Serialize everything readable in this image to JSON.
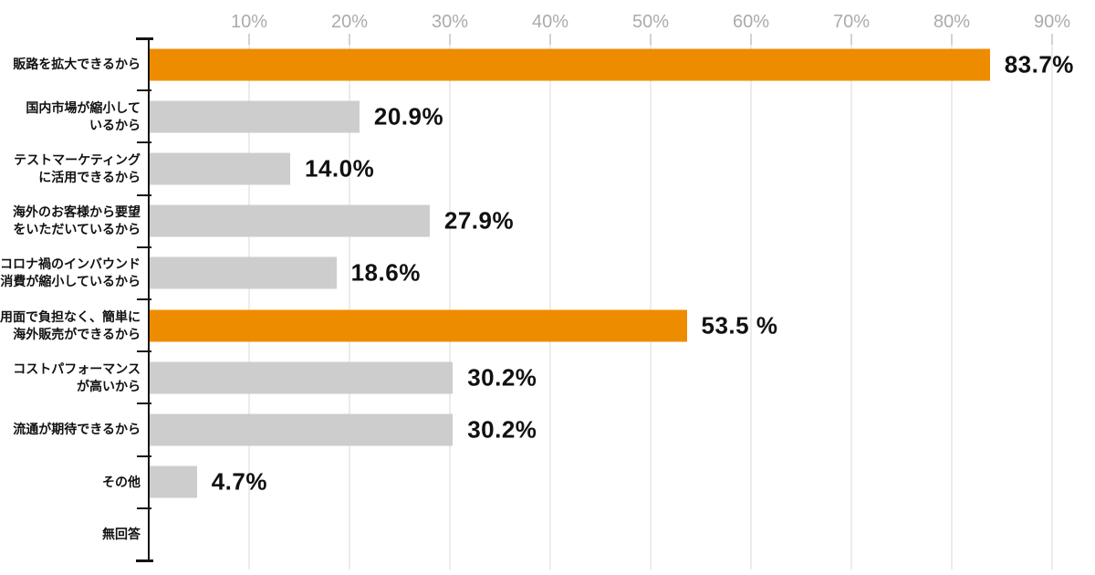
{
  "chart_data": {
    "type": "bar",
    "orientation": "horizontal",
    "title": "",
    "categories": [
      [
        "販路を拡大できるから"
      ],
      [
        "国内市場が縮小して",
        "いるから"
      ],
      [
        "テストマーケティング",
        "に活用できるから"
      ],
      [
        "海外のお客様から要望",
        "をいただいているから"
      ],
      [
        "コロナ禍のインバウンド",
        "消費が縮小しているから"
      ],
      [
        "運用面で負担なく、簡単に",
        "海外販売ができるから"
      ],
      [
        "コストパフォーマンス",
        "が高いから"
      ],
      [
        "流通が期待できるから"
      ],
      [
        "その他"
      ],
      [
        "無回答"
      ]
    ],
    "values": [
      83.7,
      20.9,
      14.0,
      27.9,
      18.6,
      53.5,
      30.2,
      30.2,
      4.7,
      0
    ],
    "value_labels": [
      "83.7%",
      "20.9%",
      "14.0%",
      "27.9%",
      "18.6%",
      "53.5 %",
      "30.2%",
      "30.2%",
      "4.7%",
      ""
    ],
    "bar_colors": [
      "#ee8c00",
      "#cdcdcd",
      "#cdcdcd",
      "#cdcdcd",
      "#cdcdcd",
      "#ee8c00",
      "#cdcdcd",
      "#cdcdcd",
      "#cdcdcd",
      "#cdcdcd"
    ],
    "colors": {
      "highlight": "#ee8c00",
      "default": "#cdcdcd",
      "axis_line": "#141414",
      "gridline": "#ececec",
      "tick_label": "#ababab",
      "value_text": "#111111",
      "category_text": "#111111",
      "background": "#ffffff"
    },
    "x_axis": {
      "tick_labels": [
        "10%",
        "20%",
        "30%",
        "40%",
        "50%",
        "60%",
        "70%",
        "80%",
        "90%"
      ],
      "tick_values": [
        10,
        20,
        30,
        40,
        50,
        60,
        70,
        80,
        90
      ],
      "min": 0,
      "max": 90,
      "unit": "%",
      "position": "top",
      "grid": true
    },
    "legend": {
      "visible": false
    }
  }
}
